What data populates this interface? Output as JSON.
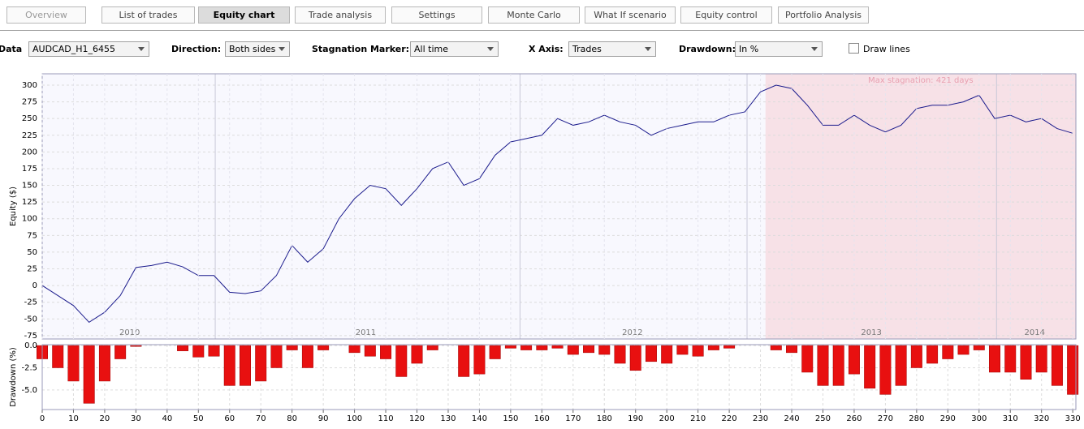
{
  "tabs": [
    "Overview",
    "List of trades",
    "Equity chart",
    "Trade analysis",
    "Settings",
    "Monte Carlo",
    "What If scenario",
    "Equity control",
    "Portfolio Analysis"
  ],
  "active_tab": 2,
  "controls": [
    {
      "label": "Data",
      "value": "AUDCAD_H1_6455"
    },
    {
      "label": "Direction:",
      "value": "Both sides"
    },
    {
      "label": "Stagnation Marker:",
      "value": "All time"
    },
    {
      "label": "X Axis:",
      "value": "Trades"
    },
    {
      "label": "Drawdown:",
      "value": "In %"
    }
  ],
  "checkbox": {
    "label": "Draw lines",
    "checked": false
  },
  "chart_data": [
    {
      "type": "line",
      "y_label": "Equity ($)",
      "color": "#1a1a8c",
      "grid": true,
      "x": [
        0,
        5,
        10,
        15,
        20,
        25,
        30,
        35,
        40,
        45,
        50,
        55,
        60,
        65,
        70,
        75,
        80,
        85,
        90,
        95,
        100,
        105,
        110,
        115,
        120,
        125,
        130,
        135,
        140,
        145,
        150,
        155,
        160,
        165,
        170,
        175,
        180,
        185,
        190,
        195,
        200,
        205,
        210,
        215,
        220,
        225,
        230,
        235,
        240,
        245,
        250,
        255,
        260,
        265,
        270,
        275,
        280,
        285,
        290,
        295,
        300,
        305,
        310,
        315,
        320,
        325,
        330
      ],
      "values": [
        0,
        -15,
        -30,
        -55,
        -40,
        -15,
        27,
        30,
        35,
        28,
        15,
        15,
        -10,
        -12,
        -8,
        15,
        60,
        35,
        55,
        100,
        130,
        150,
        145,
        120,
        145,
        175,
        185,
        150,
        160,
        195,
        215,
        220,
        225,
        250,
        240,
        245,
        255,
        245,
        240,
        225,
        235,
        240,
        245,
        245,
        255,
        260,
        290,
        300,
        295,
        270,
        240,
        240,
        255,
        240,
        230,
        240,
        265,
        270,
        270,
        275,
        285,
        250,
        255,
        245,
        250,
        235,
        228
      ],
      "xlim": [
        0,
        331
      ],
      "ylim": [
        -80,
        317
      ],
      "yticks": [
        -75,
        -50,
        -25,
        0,
        25,
        50,
        75,
        100,
        125,
        150,
        175,
        200,
        225,
        250,
        275,
        300
      ],
      "year_lines": [
        55.4,
        153,
        225.7,
        305.6
      ],
      "year_labels": [
        {
          "text": "2010",
          "x": 28
        },
        {
          "text": "2011",
          "x": 103.6
        },
        {
          "text": "2012",
          "x": 189
        },
        {
          "text": "2013",
          "x": 265.5
        },
        {
          "text": "2014",
          "x": 317.8
        }
      ],
      "stagnation": {
        "x": [
          231.6,
          331
        ],
        "label": "Max stagnation: 421 days",
        "color": "#f7e1e7"
      }
    },
    {
      "type": "bar",
      "y_label": "Drawdown (%)",
      "color": "#e81010",
      "grid": true,
      "x": [
        0,
        5,
        10,
        15,
        20,
        25,
        30,
        35,
        40,
        45,
        50,
        55,
        60,
        65,
        70,
        75,
        80,
        85,
        90,
        95,
        100,
        105,
        110,
        115,
        120,
        125,
        130,
        135,
        140,
        145,
        150,
        155,
        160,
        165,
        170,
        175,
        180,
        185,
        190,
        195,
        200,
        205,
        210,
        215,
        220,
        225,
        230,
        235,
        240,
        245,
        250,
        255,
        260,
        265,
        270,
        275,
        280,
        285,
        290,
        295,
        300,
        305,
        310,
        315,
        320,
        325,
        330
      ],
      "values": [
        -1.5,
        -2.5,
        -4,
        -6.5,
        -4,
        -1.5,
        -0.1,
        0,
        0,
        -0.6,
        -1.3,
        -1.2,
        -4.5,
        -4.5,
        -4,
        -2.5,
        -0.5,
        -2.5,
        -0.5,
        0,
        -0.8,
        -1.2,
        -1.5,
        -3.5,
        -2,
        -0.5,
        0,
        -3.5,
        -3.2,
        -1.5,
        -0.3,
        -0.5,
        -0.5,
        -0.3,
        -1,
        -0.8,
        -1,
        -2,
        -2.8,
        -1.8,
        -2,
        -1,
        -1.2,
        -0.5,
        -0.3,
        0,
        0,
        -0.5,
        -0.8,
        -3,
        -4.5,
        -4.5,
        -3.2,
        -4.8,
        -5.5,
        -4.5,
        -2.5,
        -2,
        -1.5,
        -1,
        -0.5,
        -3,
        -3,
        -3.8,
        -3,
        -4.5,
        -5.5
      ],
      "xlim": [
        0,
        331
      ],
      "ylim": [
        -7.2,
        0.1
      ],
      "yticks": [
        {
          "value": 0,
          "label": "0.0"
        },
        -2.5,
        {
          "value": -5,
          "label": "-5.0"
        }
      ],
      "xticks": [
        0,
        10,
        20,
        30,
        40,
        50,
        60,
        70,
        80,
        90,
        100,
        110,
        120,
        130,
        140,
        150,
        160,
        170,
        180,
        190,
        200,
        210,
        220,
        230,
        240,
        250,
        260,
        270,
        280,
        290,
        300,
        310,
        320,
        330
      ]
    }
  ]
}
